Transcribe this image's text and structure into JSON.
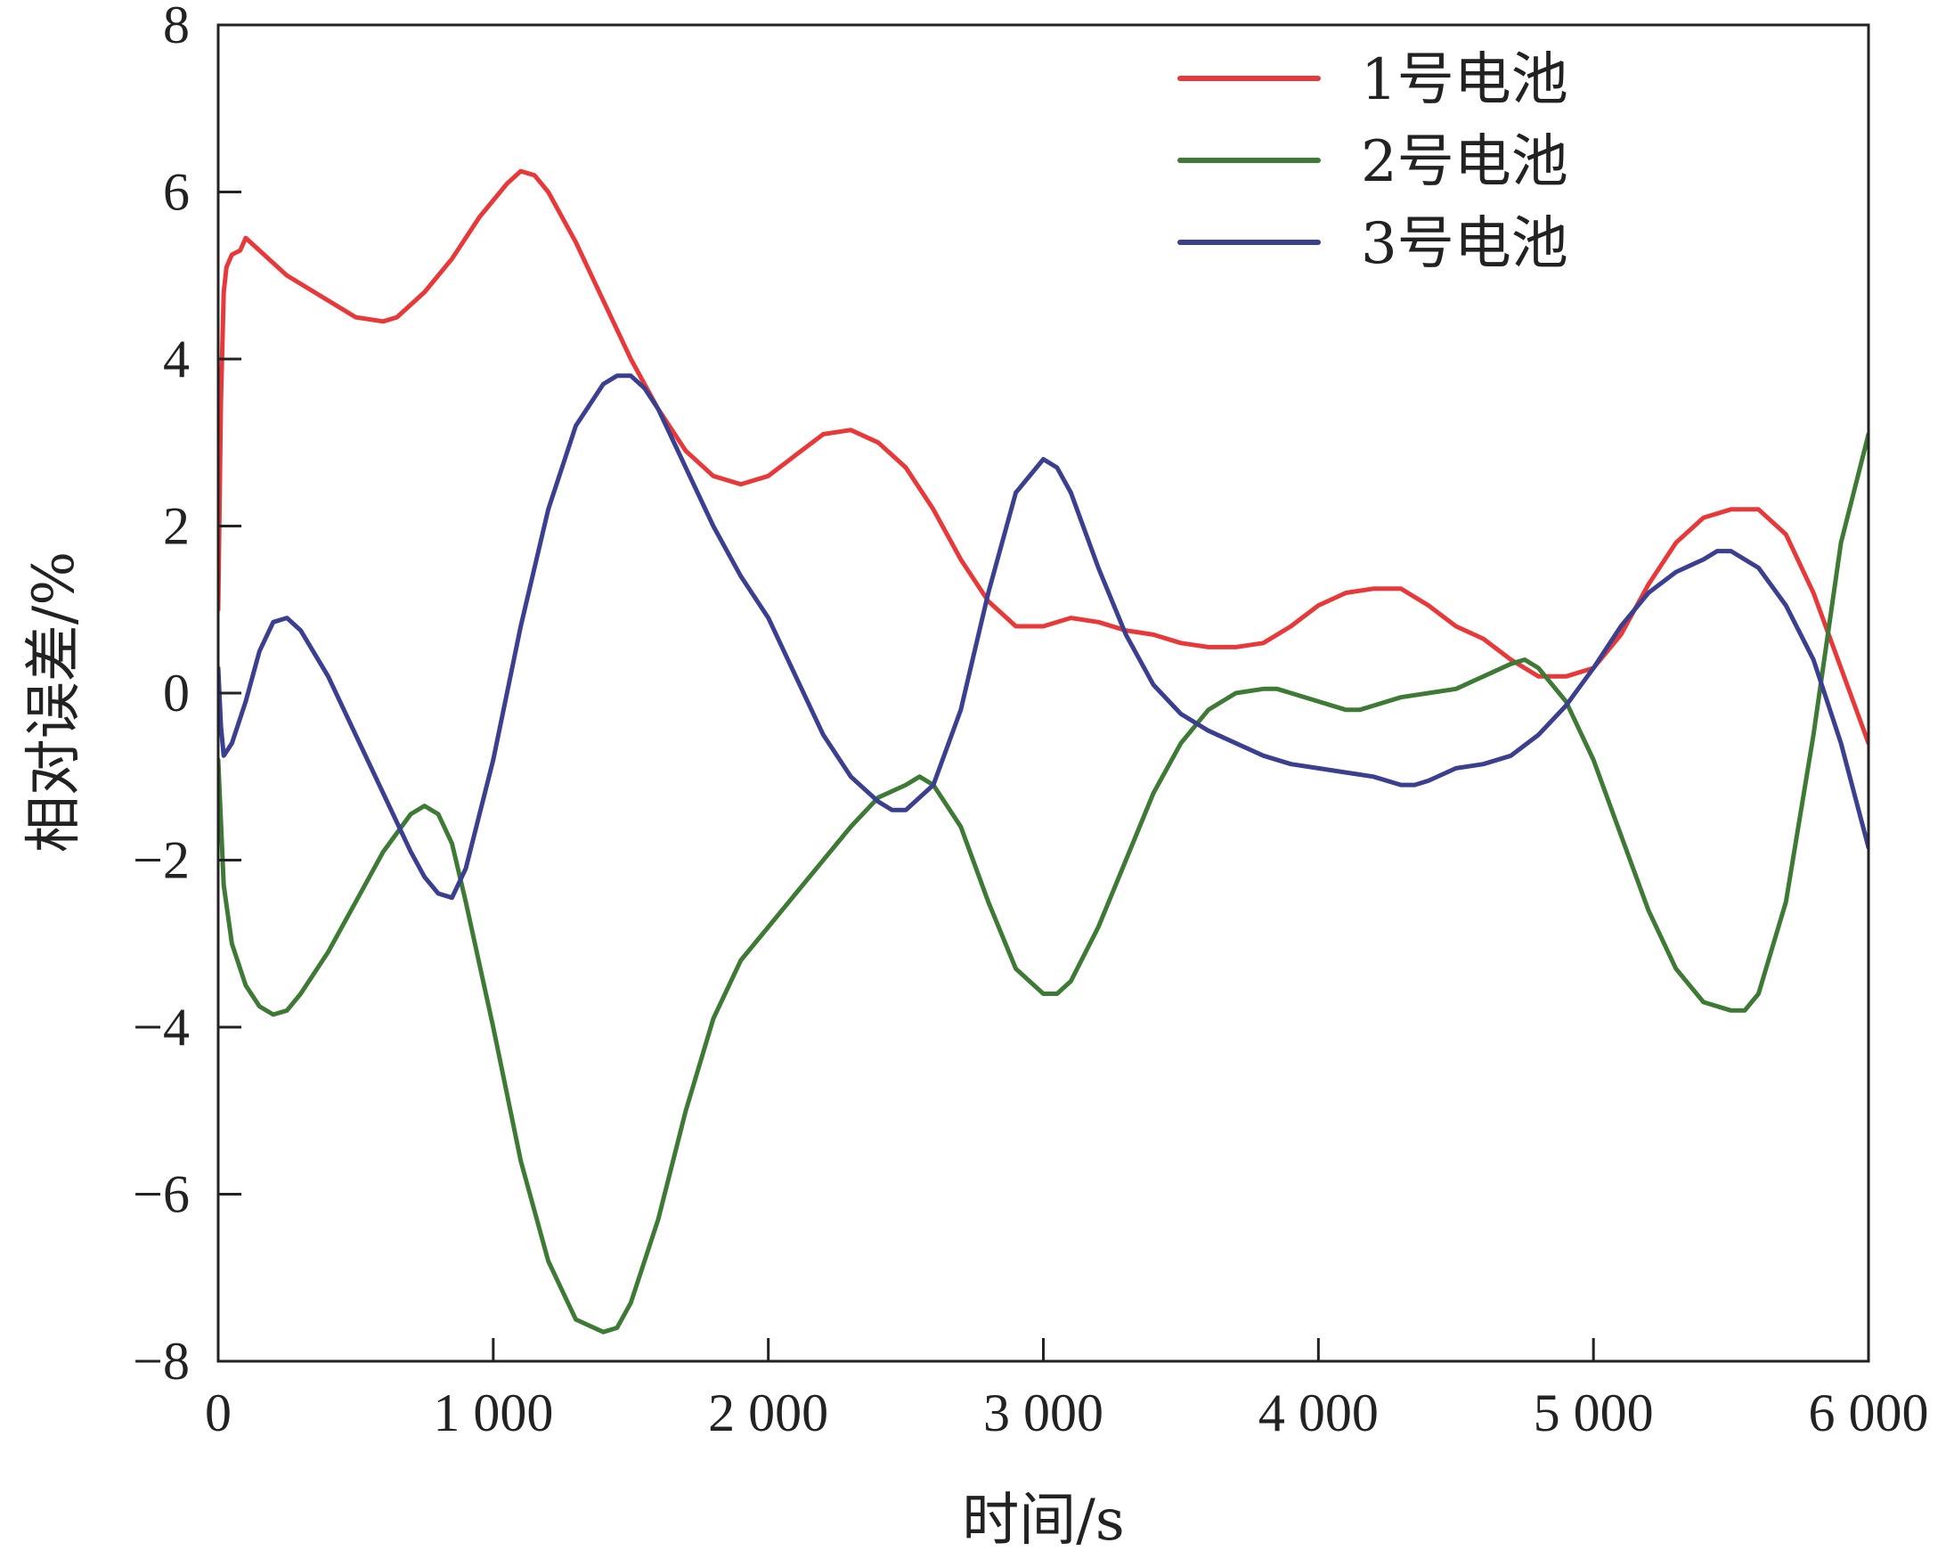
{
  "chart_data": {
    "type": "line",
    "title": "",
    "xlabel": "时间/s",
    "ylabel": "相对误差/%",
    "xlim": [
      0,
      6000
    ],
    "ylim": [
      -8,
      8
    ],
    "x_ticks": [
      0,
      1000,
      2000,
      3000,
      4000,
      5000,
      6000
    ],
    "x_tick_labels": [
      "0",
      "1 000",
      "2 000",
      "3 000",
      "4 000",
      "5 000",
      "6 000"
    ],
    "y_ticks": [
      -8,
      -6,
      -4,
      -2,
      0,
      2,
      4,
      6,
      8
    ],
    "y_tick_labels": [
      "−8",
      "−6",
      "−4",
      "−2",
      "0",
      "2",
      "4",
      "6",
      "8"
    ],
    "grid": false,
    "legend_position": "top-right",
    "series": [
      {
        "name": "1号电池",
        "color": "#e8393a",
        "x": [
          0,
          10,
          20,
          30,
          50,
          80,
          100,
          150,
          250,
          400,
          500,
          600,
          650,
          750,
          850,
          950,
          1050,
          1100,
          1150,
          1200,
          1300,
          1400,
          1500,
          1600,
          1700,
          1800,
          1900,
          2000,
          2100,
          2200,
          2300,
          2400,
          2500,
          2600,
          2700,
          2800,
          2900,
          3000,
          3100,
          3200,
          3300,
          3400,
          3500,
          3600,
          3700,
          3800,
          3900,
          4000,
          4100,
          4200,
          4300,
          4400,
          4500,
          4600,
          4700,
          4800,
          4900,
          5000,
          5100,
          5200,
          5300,
          5400,
          5500,
          5600,
          5700,
          5800,
          5900,
          6000
        ],
        "y": [
          1.0,
          3.5,
          4.8,
          5.1,
          5.25,
          5.3,
          5.45,
          5.3,
          5.0,
          4.7,
          4.5,
          4.45,
          4.5,
          4.8,
          5.2,
          5.7,
          6.1,
          6.25,
          6.2,
          6.0,
          5.4,
          4.7,
          4.0,
          3.4,
          2.9,
          2.6,
          2.5,
          2.6,
          2.85,
          3.1,
          3.15,
          3.0,
          2.7,
          2.2,
          1.6,
          1.1,
          0.8,
          0.8,
          0.9,
          0.85,
          0.75,
          0.7,
          0.6,
          0.55,
          0.55,
          0.6,
          0.8,
          1.05,
          1.2,
          1.25,
          1.25,
          1.05,
          0.8,
          0.65,
          0.4,
          0.2,
          0.2,
          0.3,
          0.7,
          1.3,
          1.8,
          2.1,
          2.2,
          2.2,
          1.9,
          1.2,
          0.3,
          -0.6
        ]
      },
      {
        "name": "2号电池",
        "color": "#3e7a35",
        "x": [
          0,
          20,
          50,
          100,
          150,
          200,
          250,
          300,
          400,
          500,
          600,
          700,
          750,
          800,
          850,
          900,
          1000,
          1100,
          1200,
          1300,
          1400,
          1450,
          1500,
          1600,
          1700,
          1800,
          1900,
          2000,
          2100,
          2200,
          2300,
          2400,
          2500,
          2550,
          2600,
          2700,
          2800,
          2900,
          3000,
          3050,
          3100,
          3200,
          3300,
          3400,
          3500,
          3600,
          3700,
          3800,
          3850,
          3900,
          4000,
          4100,
          4150,
          4200,
          4300,
          4400,
          4500,
          4600,
          4700,
          4750,
          4800,
          4900,
          5000,
          5100,
          5200,
          5300,
          5400,
          5500,
          5550,
          5600,
          5700,
          5800,
          5900,
          6000
        ],
        "y": [
          -0.8,
          -2.3,
          -3.0,
          -3.5,
          -3.75,
          -3.85,
          -3.8,
          -3.6,
          -3.1,
          -2.5,
          -1.9,
          -1.45,
          -1.35,
          -1.45,
          -1.8,
          -2.5,
          -4.0,
          -5.6,
          -6.8,
          -7.5,
          -7.65,
          -7.6,
          -7.3,
          -6.3,
          -5.0,
          -3.9,
          -3.2,
          -2.8,
          -2.4,
          -2.0,
          -1.6,
          -1.25,
          -1.1,
          -1.0,
          -1.1,
          -1.6,
          -2.5,
          -3.3,
          -3.6,
          -3.6,
          -3.45,
          -2.8,
          -2.0,
          -1.2,
          -0.6,
          -0.2,
          0.0,
          0.05,
          0.05,
          0.0,
          -0.1,
          -0.2,
          -0.2,
          -0.15,
          -0.05,
          0.0,
          0.05,
          0.2,
          0.35,
          0.4,
          0.3,
          -0.1,
          -0.8,
          -1.7,
          -2.6,
          -3.3,
          -3.7,
          -3.8,
          -3.8,
          -3.6,
          -2.5,
          -0.5,
          1.8,
          3.1
        ]
      },
      {
        "name": "3号电池",
        "color": "#3b3f8f",
        "x": [
          0,
          10,
          20,
          50,
          100,
          150,
          200,
          250,
          300,
          400,
          500,
          600,
          700,
          750,
          800,
          850,
          900,
          1000,
          1100,
          1200,
          1300,
          1400,
          1450,
          1500,
          1550,
          1600,
          1700,
          1800,
          1900,
          2000,
          2100,
          2200,
          2300,
          2400,
          2450,
          2500,
          2600,
          2700,
          2800,
          2900,
          3000,
          3050,
          3100,
          3200,
          3300,
          3400,
          3500,
          3600,
          3700,
          3800,
          3900,
          4000,
          4100,
          4200,
          4300,
          4350,
          4400,
          4500,
          4600,
          4700,
          4800,
          4900,
          5000,
          5100,
          5200,
          5300,
          5400,
          5450,
          5500,
          5600,
          5700,
          5800,
          5900,
          6000
        ],
        "y": [
          0.3,
          -0.4,
          -0.75,
          -0.6,
          -0.1,
          0.5,
          0.85,
          0.9,
          0.75,
          0.2,
          -0.5,
          -1.2,
          -1.9,
          -2.2,
          -2.4,
          -2.45,
          -2.1,
          -0.8,
          0.8,
          2.2,
          3.2,
          3.7,
          3.8,
          3.8,
          3.65,
          3.4,
          2.7,
          2.0,
          1.4,
          0.9,
          0.2,
          -0.5,
          -1.0,
          -1.3,
          -1.4,
          -1.4,
          -1.1,
          -0.2,
          1.2,
          2.4,
          2.8,
          2.7,
          2.4,
          1.5,
          0.7,
          0.1,
          -0.25,
          -0.45,
          -0.6,
          -0.75,
          -0.85,
          -0.9,
          -0.95,
          -1.0,
          -1.1,
          -1.1,
          -1.05,
          -0.9,
          -0.85,
          -0.75,
          -0.5,
          -0.15,
          0.3,
          0.8,
          1.2,
          1.45,
          1.6,
          1.7,
          1.7,
          1.5,
          1.05,
          0.4,
          -0.6,
          -1.85
        ]
      }
    ]
  }
}
